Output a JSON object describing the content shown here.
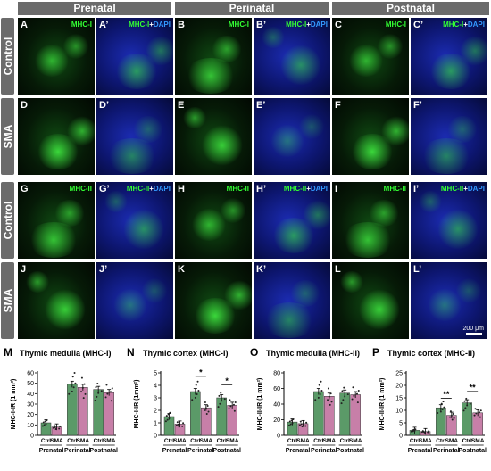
{
  "headers": [
    "Prenatal",
    "Perinatal",
    "Postnatal"
  ],
  "row_labels": [
    "Control",
    "SMA",
    "Control",
    "SMA"
  ],
  "panels": [
    {
      "letter": "A",
      "marker": "MHC-I",
      "dapi": false
    },
    {
      "letter": "A’",
      "marker": "MHC-I",
      "dapi": true
    },
    {
      "letter": "B",
      "marker": "MHC-I",
      "dapi": false
    },
    {
      "letter": "B’",
      "marker": "MHC-I",
      "dapi": true
    },
    {
      "letter": "C",
      "marker": "MHC-I",
      "dapi": false
    },
    {
      "letter": "C’",
      "marker": "MHC-I",
      "dapi": true
    },
    {
      "letter": "D",
      "marker": "",
      "dapi": false
    },
    {
      "letter": "D’",
      "marker": "",
      "dapi": true
    },
    {
      "letter": "E",
      "marker": "",
      "dapi": false
    },
    {
      "letter": "E’",
      "marker": "",
      "dapi": true
    },
    {
      "letter": "F",
      "marker": "",
      "dapi": false
    },
    {
      "letter": "F’",
      "marker": "",
      "dapi": true
    },
    {
      "letter": "G",
      "marker": "MHC-II",
      "dapi": false
    },
    {
      "letter": "G’",
      "marker": "MHC-II",
      "dapi": true
    },
    {
      "letter": "H",
      "marker": "MHC-II",
      "dapi": false
    },
    {
      "letter": "H’",
      "marker": "MHC-II",
      "dapi": true
    },
    {
      "letter": "I",
      "marker": "MHC-II",
      "dapi": false
    },
    {
      "letter": "I’",
      "marker": "MHC-II",
      "dapi": true
    },
    {
      "letter": "J",
      "marker": "",
      "dapi": false
    },
    {
      "letter": "J’",
      "marker": "",
      "dapi": true
    },
    {
      "letter": "K",
      "marker": "",
      "dapi": false
    },
    {
      "letter": "K’",
      "marker": "",
      "dapi": true
    },
    {
      "letter": "L",
      "marker": "",
      "dapi": false
    },
    {
      "letter": "L’",
      "marker": "",
      "dapi": true
    }
  ],
  "labels": {
    "plus": "+",
    "dapi": "DAPI"
  },
  "scale_bar": "200 μm",
  "colors": {
    "ctrl": "#5b9a68",
    "sma": "#c77fa8",
    "header": "#6b6b6b"
  },
  "chart_data": [
    {
      "letter": "M",
      "type": "bar",
      "title": "Thymic medulla (MHC-I)",
      "ylabel": "MHC-I-IR (1 mm²)",
      "ylim": [
        0,
        60
      ],
      "ticks": [
        0,
        10,
        20,
        30,
        40,
        50,
        60
      ],
      "groups": [
        "Prenatal",
        "Perinatal",
        "Postnatal"
      ],
      "bar_labels": [
        "Ctrl",
        "SMA"
      ],
      "series": [
        {
          "name": "Ctrl",
          "values": [
            12,
            49,
            44
          ]
        },
        {
          "name": "SMA",
          "values": [
            8,
            46,
            41
          ]
        }
      ],
      "significance": []
    },
    {
      "letter": "N",
      "type": "bar",
      "title": "Thymic cortex (MHC-I)",
      "ylabel": "MHC-I-IR (1mm²)",
      "ylim": [
        0,
        5
      ],
      "ticks": [
        0,
        1,
        2,
        3,
        4,
        5
      ],
      "groups": [
        "Prenatal",
        "Perinatal",
        "Postnatal"
      ],
      "bar_labels": [
        "Ctrl",
        "SMA"
      ],
      "series": [
        {
          "name": "Ctrl",
          "values": [
            1.5,
            3.5,
            3.0
          ]
        },
        {
          "name": "SMA",
          "values": [
            0.9,
            2.2,
            2.4
          ]
        }
      ],
      "significance": [
        {
          "group": 1,
          "label": "*"
        },
        {
          "group": 2,
          "label": "*"
        }
      ]
    },
    {
      "letter": "O",
      "type": "bar",
      "title": "Thymic medulla (MHC-II)",
      "ylabel": "MHC-II-IR (1 mm²)",
      "ylim": [
        0,
        80
      ],
      "ticks": [
        0,
        20,
        40,
        60,
        80
      ],
      "groups": [
        "Prenatal",
        "Perinatal",
        "Postnatal"
      ],
      "bar_labels": [
        "Ctrl",
        "SMA"
      ],
      "series": [
        {
          "name": "Ctrl",
          "values": [
            17,
            56,
            54
          ]
        },
        {
          "name": "SMA",
          "values": [
            15,
            50,
            52
          ]
        }
      ],
      "significance": []
    },
    {
      "letter": "P",
      "type": "bar",
      "title": "Thymic cortex (MHC-II)",
      "ylabel": "MHC-II-IR (1 mm²)",
      "ylim": [
        0,
        25
      ],
      "ticks": [
        0,
        5,
        10,
        15,
        20,
        25
      ],
      "groups": [
        "Prenatal",
        "Perinatal",
        "Postnatal"
      ],
      "bar_labels": [
        "Ctrl",
        "SMA"
      ],
      "series": [
        {
          "name": "Ctrl",
          "values": [
            2,
            11,
            13
          ]
        },
        {
          "name": "SMA",
          "values": [
            1.5,
            8,
            9
          ]
        }
      ],
      "significance": [
        {
          "group": 1,
          "label": "**"
        },
        {
          "group": 2,
          "label": "**"
        }
      ]
    }
  ]
}
